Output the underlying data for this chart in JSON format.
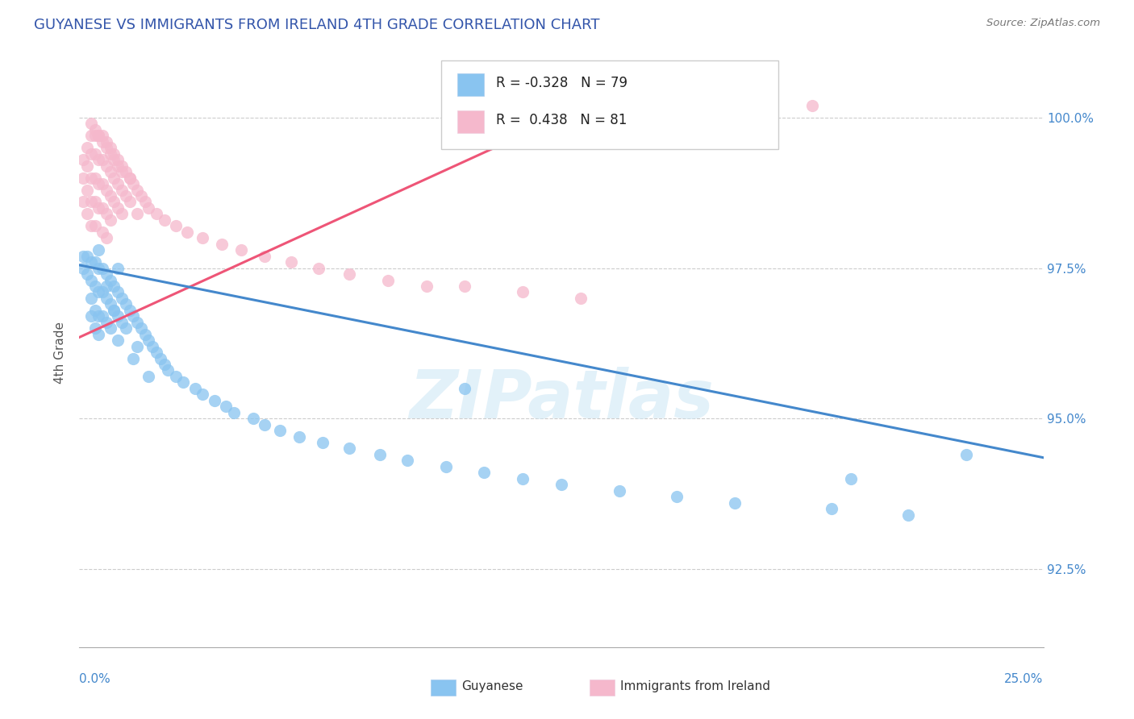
{
  "title": "GUYANESE VS IMMIGRANTS FROM IRELAND 4TH GRADE CORRELATION CHART",
  "source_text": "Source: ZipAtlas.com",
  "ylabel": "4th Grade",
  "ytick_labels": [
    "92.5%",
    "95.0%",
    "97.5%",
    "100.0%"
  ],
  "ytick_values": [
    0.925,
    0.95,
    0.975,
    1.0
  ],
  "xmin": 0.0,
  "xmax": 0.25,
  "ymin": 0.912,
  "ymax": 1.01,
  "blue_R": -0.328,
  "blue_N": 79,
  "pink_R": 0.438,
  "pink_N": 81,
  "blue_color": "#89c4f0",
  "pink_color": "#f5b8cc",
  "blue_line_color": "#4488cc",
  "pink_line_color": "#ee5577",
  "legend_label_blue": "Guyanese",
  "legend_label_pink": "Immigrants from Ireland",
  "watermark_text": "ZIPatlas",
  "blue_line_x": [
    0.0,
    0.25
  ],
  "blue_line_y": [
    0.9755,
    0.9435
  ],
  "pink_line_x": [
    0.0,
    0.135
  ],
  "pink_line_y": [
    0.9635,
    1.003
  ],
  "blue_dots_x": [
    0.001,
    0.001,
    0.002,
    0.002,
    0.003,
    0.003,
    0.003,
    0.003,
    0.004,
    0.004,
    0.004,
    0.004,
    0.005,
    0.005,
    0.005,
    0.005,
    0.006,
    0.006,
    0.006,
    0.007,
    0.007,
    0.007,
    0.008,
    0.008,
    0.008,
    0.009,
    0.009,
    0.01,
    0.01,
    0.01,
    0.011,
    0.011,
    0.012,
    0.012,
    0.013,
    0.014,
    0.015,
    0.015,
    0.016,
    0.017,
    0.018,
    0.019,
    0.02,
    0.021,
    0.022,
    0.023,
    0.025,
    0.027,
    0.03,
    0.032,
    0.035,
    0.038,
    0.04,
    0.045,
    0.048,
    0.052,
    0.057,
    0.063,
    0.07,
    0.078,
    0.085,
    0.095,
    0.105,
    0.115,
    0.125,
    0.14,
    0.155,
    0.17,
    0.195,
    0.215,
    0.005,
    0.007,
    0.009,
    0.01,
    0.014,
    0.018,
    0.1,
    0.2,
    0.23
  ],
  "blue_dots_y": [
    0.977,
    0.975,
    0.977,
    0.974,
    0.976,
    0.973,
    0.97,
    0.967,
    0.976,
    0.972,
    0.968,
    0.965,
    0.975,
    0.971,
    0.967,
    0.964,
    0.975,
    0.971,
    0.967,
    0.974,
    0.97,
    0.966,
    0.973,
    0.969,
    0.965,
    0.972,
    0.968,
    0.971,
    0.967,
    0.963,
    0.97,
    0.966,
    0.969,
    0.965,
    0.968,
    0.967,
    0.966,
    0.962,
    0.965,
    0.964,
    0.963,
    0.962,
    0.961,
    0.96,
    0.959,
    0.958,
    0.957,
    0.956,
    0.955,
    0.954,
    0.953,
    0.952,
    0.951,
    0.95,
    0.949,
    0.948,
    0.947,
    0.946,
    0.945,
    0.944,
    0.943,
    0.942,
    0.941,
    0.94,
    0.939,
    0.938,
    0.937,
    0.936,
    0.935,
    0.934,
    0.978,
    0.972,
    0.968,
    0.975,
    0.96,
    0.957,
    0.955,
    0.94,
    0.944
  ],
  "pink_dots_x": [
    0.001,
    0.001,
    0.001,
    0.002,
    0.002,
    0.002,
    0.002,
    0.003,
    0.003,
    0.003,
    0.003,
    0.003,
    0.004,
    0.004,
    0.004,
    0.004,
    0.004,
    0.005,
    0.005,
    0.005,
    0.005,
    0.006,
    0.006,
    0.006,
    0.006,
    0.006,
    0.007,
    0.007,
    0.007,
    0.007,
    0.007,
    0.008,
    0.008,
    0.008,
    0.008,
    0.009,
    0.009,
    0.009,
    0.01,
    0.01,
    0.01,
    0.011,
    0.011,
    0.011,
    0.012,
    0.012,
    0.013,
    0.013,
    0.014,
    0.015,
    0.015,
    0.016,
    0.017,
    0.018,
    0.02,
    0.022,
    0.025,
    0.028,
    0.032,
    0.037,
    0.042,
    0.048,
    0.055,
    0.062,
    0.07,
    0.08,
    0.09,
    0.1,
    0.115,
    0.13,
    0.003,
    0.004,
    0.005,
    0.006,
    0.007,
    0.008,
    0.009,
    0.01,
    0.011,
    0.013,
    0.19
  ],
  "pink_dots_y": [
    0.993,
    0.99,
    0.986,
    0.995,
    0.992,
    0.988,
    0.984,
    0.997,
    0.994,
    0.99,
    0.986,
    0.982,
    0.997,
    0.994,
    0.99,
    0.986,
    0.982,
    0.997,
    0.993,
    0.989,
    0.985,
    0.997,
    0.993,
    0.989,
    0.985,
    0.981,
    0.996,
    0.992,
    0.988,
    0.984,
    0.98,
    0.995,
    0.991,
    0.987,
    0.983,
    0.994,
    0.99,
    0.986,
    0.993,
    0.989,
    0.985,
    0.992,
    0.988,
    0.984,
    0.991,
    0.987,
    0.99,
    0.986,
    0.989,
    0.988,
    0.984,
    0.987,
    0.986,
    0.985,
    0.984,
    0.983,
    0.982,
    0.981,
    0.98,
    0.979,
    0.978,
    0.977,
    0.976,
    0.975,
    0.974,
    0.973,
    0.972,
    0.972,
    0.971,
    0.97,
    0.999,
    0.998,
    0.997,
    0.996,
    0.995,
    0.994,
    0.993,
    0.992,
    0.991,
    0.99,
    1.002
  ]
}
